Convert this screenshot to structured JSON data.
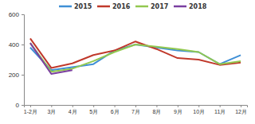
{
  "chart_data": {
    "type": "line",
    "categories": [
      "1-2月",
      "3月",
      "4月",
      "5月",
      "6月",
      "7月",
      "8月",
      "9月",
      "10月",
      "11月",
      "12月"
    ],
    "series": [
      {
        "name": "2015",
        "color": "#3f8fd6",
        "values": [
          380,
          230,
          250,
          270,
          360,
          400,
          380,
          360,
          350,
          270,
          330
        ]
      },
      {
        "name": "2016",
        "color": "#c0392b",
        "values": [
          440,
          245,
          275,
          330,
          360,
          420,
          370,
          310,
          300,
          265,
          280
        ]
      },
      {
        "name": "2017",
        "color": "#92c850",
        "values": [
          410,
          220,
          240,
          290,
          350,
          400,
          385,
          370,
          350,
          270,
          290
        ]
      },
      {
        "name": "2018",
        "color": "#7b3fa0",
        "values": [
          410,
          205,
          230,
          null,
          null,
          null,
          null,
          null,
          null,
          null,
          null
        ]
      }
    ],
    "ylim": [
      0,
      600
    ],
    "yticks": [
      0,
      200,
      400,
      600
    ],
    "grid": false,
    "legend": "top"
  }
}
